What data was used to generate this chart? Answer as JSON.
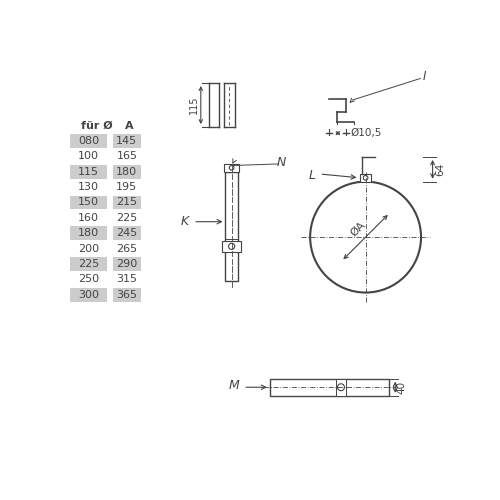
{
  "bg_color": "#ffffff",
  "table_header": [
    "für Ø",
    "A"
  ],
  "table_rows": [
    [
      "080",
      "145",
      true
    ],
    [
      "100",
      "165",
      false
    ],
    [
      "115",
      "180",
      true
    ],
    [
      "130",
      "195",
      false
    ],
    [
      "150",
      "215",
      true
    ],
    [
      "160",
      "225",
      false
    ],
    [
      "180",
      "245",
      true
    ],
    [
      "200",
      "265",
      false
    ],
    [
      "225",
      "290",
      true
    ],
    [
      "250",
      "315",
      false
    ],
    [
      "300",
      "365",
      true
    ]
  ],
  "table_shade": "#cccccc",
  "line_color": "#444444",
  "text_color": "#444444"
}
